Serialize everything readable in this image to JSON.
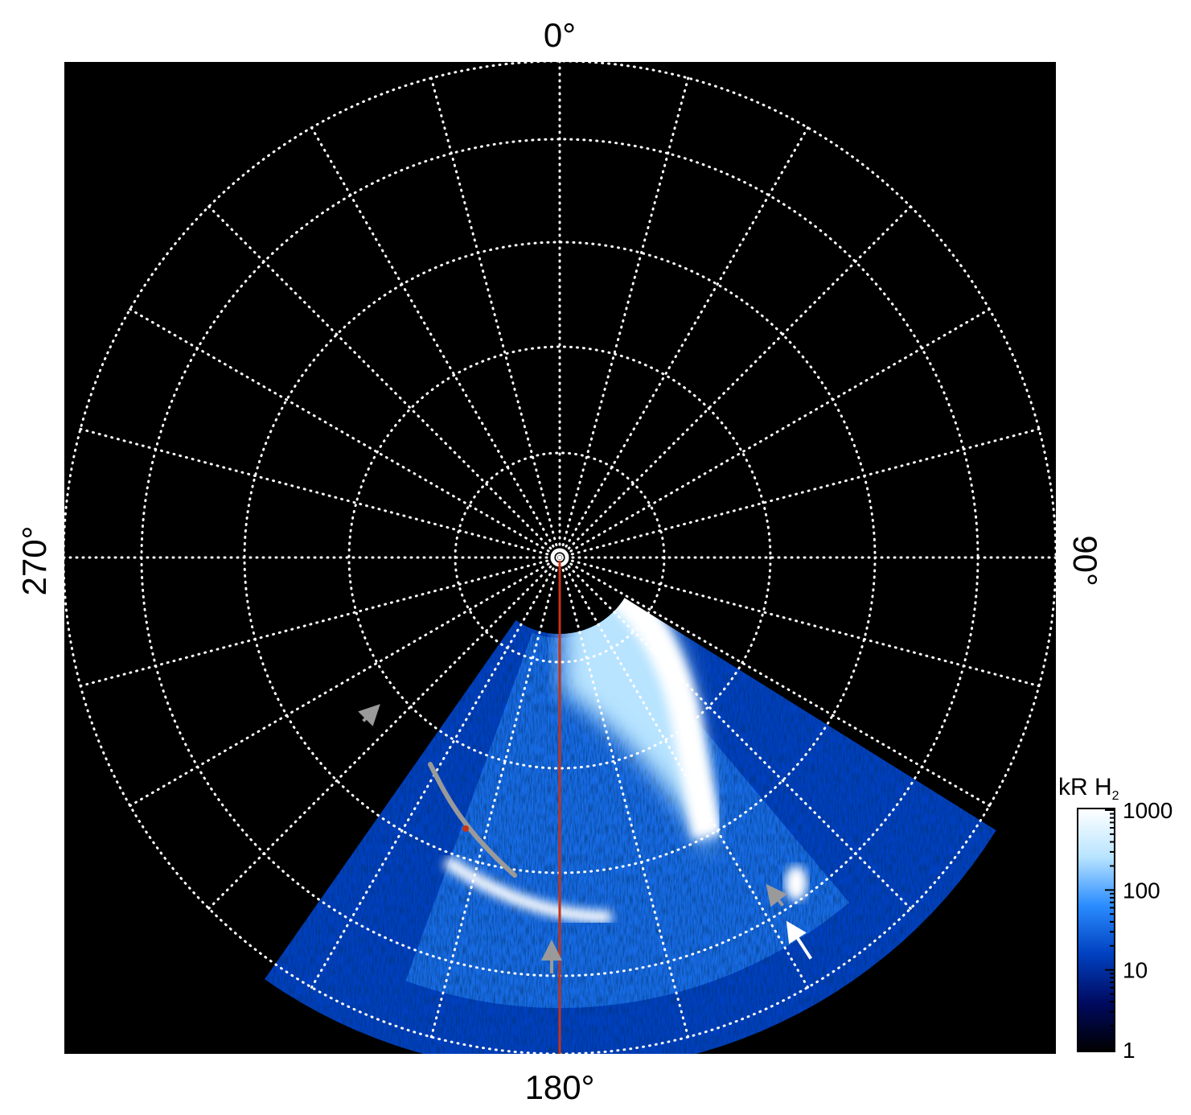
{
  "chart_data": {
    "type": "heatmap",
    "projection": "polar",
    "background_color": "#000000",
    "grid": true,
    "grid_color": "#ffffff",
    "grid_style": "dotted",
    "azimuth_labels": {
      "top": "0°",
      "right": "90°",
      "bottom": "180°",
      "left": "270°"
    },
    "colorbar": {
      "label": "kR H",
      "label_subscript": "2",
      "scale": "log",
      "range": [
        1,
        1000
      ],
      "ticks": [
        "1000",
        "100",
        "10",
        "1"
      ],
      "tick_values": [
        1000,
        100,
        10,
        1
      ],
      "colors": [
        "#000000",
        "#000a60",
        "#0040c0",
        "#2a8cff",
        "#b8e4ff",
        "#ffffff"
      ],
      "placement": "right"
    },
    "annotations": {
      "meridian_line_color": "#c83214",
      "gray_arc_color": "#9a9a9a",
      "marker_color": "#c83214",
      "arrow_colors": [
        "#9a9a9a",
        "#ffffff"
      ]
    }
  }
}
